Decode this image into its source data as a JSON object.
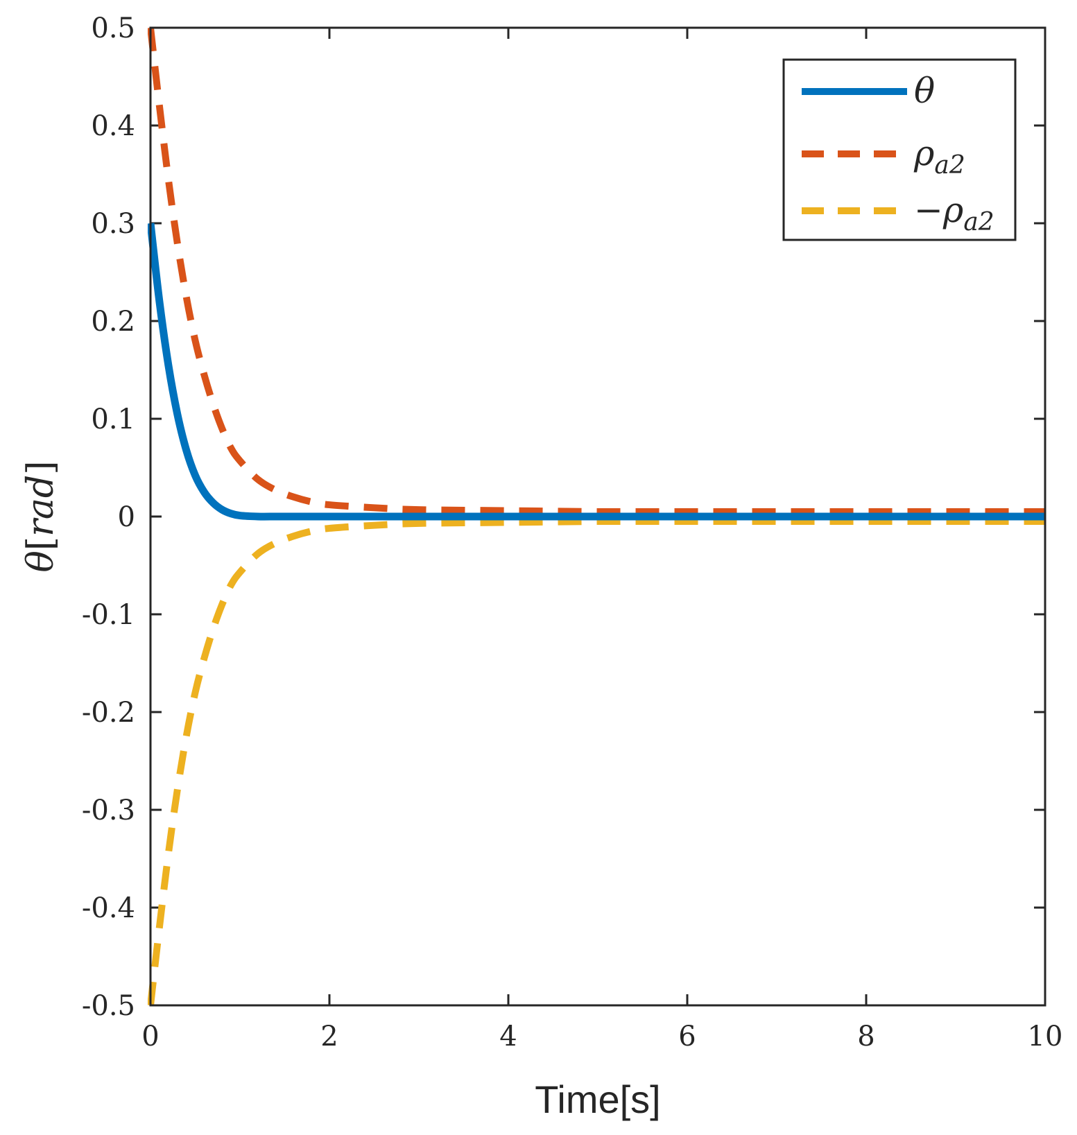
{
  "chart_data": {
    "type": "line",
    "title": "",
    "xlabel": "Time[s]",
    "ylabel": {
      "symbol": "θ",
      "open": "[",
      "unit": "rad",
      "close": "]"
    },
    "xlim": [
      0,
      10
    ],
    "ylim": [
      -0.5,
      0.5
    ],
    "xticks": [
      0,
      2,
      4,
      6,
      8,
      10
    ],
    "xtick_labels": [
      "0",
      "2",
      "4",
      "6",
      "8",
      "10"
    ],
    "yticks": [
      0.5,
      0.4,
      0.3,
      0.2,
      0.1,
      0,
      -0.1,
      -0.2,
      -0.3,
      -0.4,
      -0.5
    ],
    "ytick_labels": [
      "0.5",
      "0.4",
      "0.3",
      "0.2",
      "0.1",
      "0",
      "-0.1",
      "-0.2",
      "-0.3",
      "-0.4",
      "-0.5"
    ],
    "grid": false,
    "legend_position": "top-right",
    "x": [
      0,
      0.1,
      0.2,
      0.3,
      0.4,
      0.5,
      0.6,
      0.7,
      0.8,
      0.9,
      1.0,
      1.2,
      1.4,
      1.6,
      1.8,
      2.0,
      2.5,
      3.0,
      4.0,
      5.0,
      6.0,
      7.0,
      8.0,
      9.0,
      10.0
    ],
    "series": [
      {
        "name": "θ",
        "legend": {
          "base": "θ",
          "sub": "",
          "prefix": ""
        },
        "color": "#0072BD",
        "style": "solid",
        "values": [
          0.3,
          0.22,
          0.155,
          0.105,
          0.068,
          0.042,
          0.025,
          0.014,
          0.007,
          0.003,
          0.001,
          0,
          0,
          0,
          0,
          0,
          0,
          0,
          0,
          0,
          0,
          0,
          0,
          0,
          0
        ]
      },
      {
        "name": "ρa2",
        "legend": {
          "base": "ρ",
          "sub": "a2",
          "prefix": ""
        },
        "color": "#D95319",
        "style": "dashed",
        "values": [
          0.5,
          0.42,
          0.345,
          0.28,
          0.225,
          0.18,
          0.145,
          0.115,
          0.09,
          0.07,
          0.057,
          0.038,
          0.027,
          0.02,
          0.015,
          0.012,
          0.009,
          0.007,
          0.006,
          0.005,
          0.005,
          0.005,
          0.005,
          0.005,
          0.005
        ]
      },
      {
        "name": "-ρa2",
        "legend": {
          "base": "ρ",
          "sub": "a2",
          "prefix": "−"
        },
        "color": "#EDB120",
        "style": "dashed",
        "values": [
          -0.5,
          -0.42,
          -0.345,
          -0.28,
          -0.225,
          -0.18,
          -0.145,
          -0.115,
          -0.09,
          -0.07,
          -0.057,
          -0.038,
          -0.027,
          -0.02,
          -0.015,
          -0.012,
          -0.009,
          -0.007,
          -0.006,
          -0.005,
          -0.005,
          -0.005,
          -0.005,
          -0.005,
          -0.005
        ]
      }
    ]
  }
}
